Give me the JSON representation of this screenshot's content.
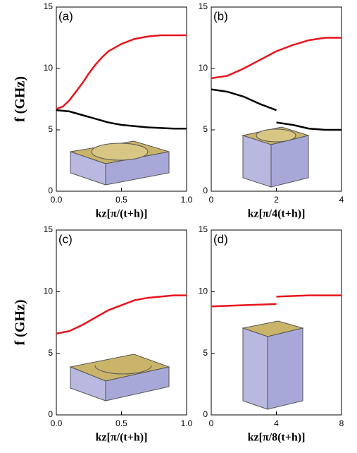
{
  "chart_data": [
    {
      "type": "line",
      "annotation": "(a)",
      "xlabel": "kz[π/(t+h)]",
      "ylabel": "f (GHz)",
      "xlim": [
        0,
        1
      ],
      "ylim": [
        0,
        15
      ],
      "xticks": [
        {
          "value": 0,
          "label": "0.0"
        },
        {
          "value": 0.5,
          "label": "0.5"
        },
        {
          "value": 1,
          "label": "1.0"
        }
      ],
      "yticks": [
        0,
        5,
        10,
        15
      ],
      "series": [
        {
          "color": "#e8141b",
          "x": [
            0,
            0.05,
            0.1,
            0.15,
            0.2,
            0.25,
            0.3,
            0.35,
            0.4,
            0.5,
            0.6,
            0.7,
            0.8,
            0.9,
            1
          ],
          "values": [
            6.7,
            6.9,
            7.4,
            8.1,
            8.8,
            9.6,
            10.3,
            10.9,
            11.4,
            12.0,
            12.4,
            12.6,
            12.7,
            12.7,
            12.7
          ]
        },
        {
          "color": "#000000",
          "x": [
            0,
            0.1,
            0.2,
            0.3,
            0.4,
            0.5,
            0.6,
            0.7,
            0.8,
            0.9,
            1
          ],
          "values": [
            6.6,
            6.5,
            6.2,
            5.9,
            5.6,
            5.4,
            5.3,
            5.2,
            5.15,
            5.1,
            5.1
          ]
        }
      ]
    },
    {
      "type": "line",
      "annotation": "(b)",
      "xlabel": "kz[π/4(t+h)]",
      "xlim": [
        0,
        4
      ],
      "ylim": [
        0,
        15
      ],
      "xticks": [
        0,
        2,
        4
      ],
      "yticks": [
        0,
        5,
        10,
        15
      ],
      "series": [
        {
          "color": "#e8141b",
          "x": [
            0,
            0.5,
            1,
            1.5,
            2,
            2.5,
            3,
            3.5,
            4
          ],
          "values": [
            9.2,
            9.4,
            10.0,
            10.7,
            11.4,
            11.9,
            12.3,
            12.5,
            12.5
          ]
        },
        {
          "color": "#000000",
          "x": [
            0,
            0.5,
            1,
            1.5,
            2
          ],
          "values": [
            8.3,
            8.1,
            7.7,
            7.1,
            6.6
          ]
        },
        {
          "color": "#000000",
          "x": [
            2,
            2.5,
            3,
            3.5,
            4
          ],
          "values": [
            5.6,
            5.4,
            5.1,
            5.0,
            5.0
          ]
        }
      ]
    },
    {
      "type": "line",
      "annotation": "(c)",
      "xlabel": "kz[π/(t+h)]",
      "ylabel": "f (GHz)",
      "xlim": [
        0,
        1
      ],
      "ylim": [
        0,
        15
      ],
      "xticks": [
        {
          "value": 0,
          "label": "0.0"
        },
        {
          "value": 0.5,
          "label": "0.5"
        },
        {
          "value": 1,
          "label": "1.0"
        }
      ],
      "yticks": [
        0,
        5,
        10,
        15
      ],
      "series": [
        {
          "color": "#e8141b",
          "x": [
            0,
            0.1,
            0.2,
            0.3,
            0.4,
            0.5,
            0.6,
            0.7,
            0.8,
            0.9,
            1
          ],
          "values": [
            6.6,
            6.8,
            7.3,
            7.9,
            8.5,
            8.9,
            9.3,
            9.5,
            9.6,
            9.7,
            9.7
          ]
        }
      ]
    },
    {
      "type": "line",
      "annotation": "(d)",
      "xlabel": "kz[π/8(t+h)]",
      "xlim": [
        0,
        8
      ],
      "ylim": [
        0,
        15
      ],
      "xticks": [
        0,
        4,
        8
      ],
      "yticks": [
        0,
        5,
        10,
        15
      ],
      "series": [
        {
          "color": "#e8141b",
          "x": [
            0,
            2,
            4
          ],
          "values": [
            8.8,
            8.9,
            9.0
          ]
        },
        {
          "color": "#e8141b",
          "x": [
            4,
            6,
            8
          ],
          "values": [
            9.6,
            9.7,
            9.7
          ]
        }
      ]
    }
  ]
}
